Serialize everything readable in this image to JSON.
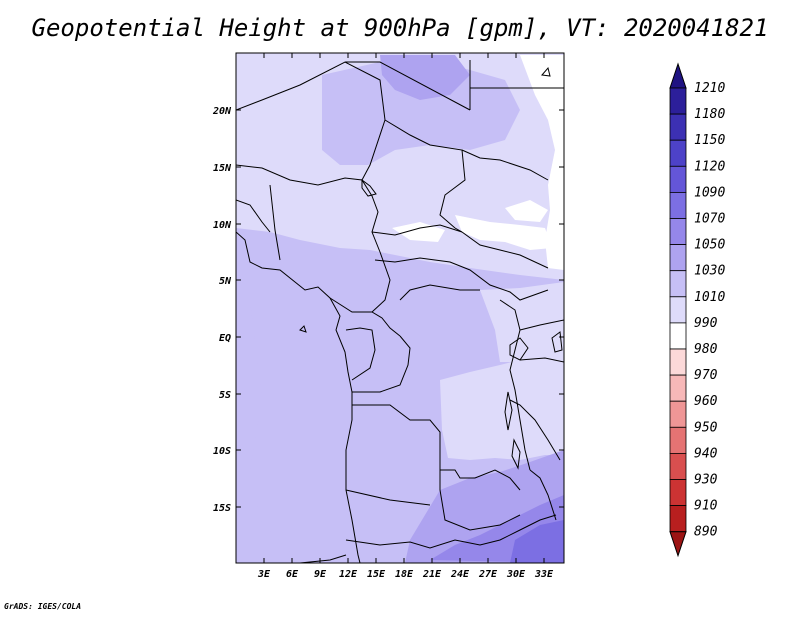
{
  "title": "Geopotential Height at 900hPa [gpm], VT: 2020041821",
  "credit": "GrADS: IGES/COLA",
  "lat_labels": [
    "20N",
    "15N",
    "10N",
    "5N",
    "EQ",
    "5S",
    "10S",
    "15S"
  ],
  "lon_labels": [
    "3E",
    "6E",
    "9E",
    "12E",
    "15E",
    "18E",
    "21E",
    "24E",
    "27E",
    "30E",
    "33E"
  ],
  "colorbar": {
    "labels": [
      "1210",
      "1180",
      "1150",
      "1120",
      "1090",
      "1070",
      "1050",
      "1030",
      "1010",
      "990",
      "980",
      "970",
      "960",
      "950",
      "940",
      "930",
      "910",
      "890"
    ],
    "colors": [
      "#1f1382",
      "#2c1f9a",
      "#3c30b3",
      "#4d42c8",
      "#6456d8",
      "#7c6fe3",
      "#9587ea",
      "#aea3f0",
      "#c6bff6",
      "#dedbfa",
      "#ffffff",
      "#fcd9d9",
      "#f7b8b8",
      "#ef9696",
      "#e57373",
      "#d94f4f",
      "#cc3333",
      "#b81f1f",
      "#9c1414"
    ]
  },
  "map": {
    "field_colors": [
      "#dedbfa",
      "#c6bff6",
      "#aea3f0",
      "#9587ea",
      "#7c6fe3",
      "#ffffff"
    ]
  }
}
